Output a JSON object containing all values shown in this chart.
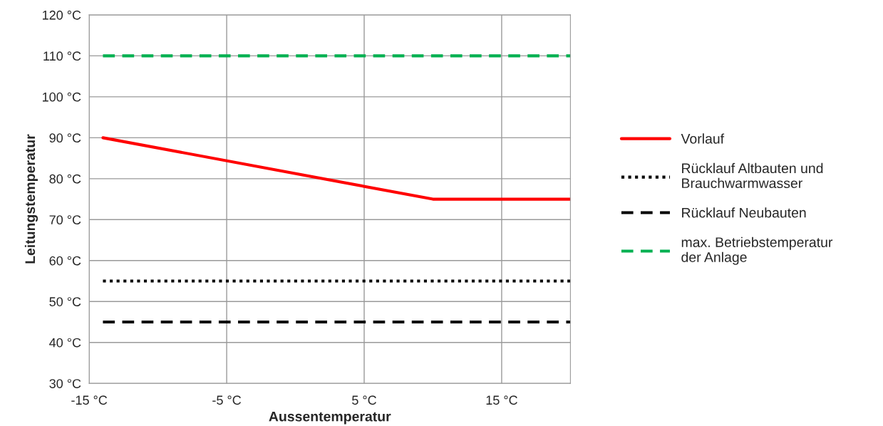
{
  "chart_data": {
    "type": "line",
    "xlabel": "Aussentemperatur",
    "ylabel": "Leitungstemperatur",
    "xlim": [
      -15,
      20
    ],
    "xticks": [
      {
        "value": -15,
        "label": "-15 °C"
      },
      {
        "value": -5,
        "label": "-5 °C"
      },
      {
        "value": 5,
        "label": "5 °C"
      },
      {
        "value": 15,
        "label": "15 °C"
      }
    ],
    "ylim": [
      30,
      120
    ],
    "yticks": [
      {
        "value": 30,
        "label": "30 °C"
      },
      {
        "value": 40,
        "label": "40 °C"
      },
      {
        "value": 50,
        "label": "50 °C"
      },
      {
        "value": 60,
        "label": "60 °C"
      },
      {
        "value": 70,
        "label": "70 °C"
      },
      {
        "value": 80,
        "label": "80 °C"
      },
      {
        "value": 90,
        "label": "90 °C"
      },
      {
        "value": 100,
        "label": "100 °C"
      },
      {
        "value": 110,
        "label": "110 °C"
      },
      {
        "value": 120,
        "label": "120 °C"
      }
    ],
    "grid": true,
    "legend": "right",
    "marker": "none",
    "series": [
      {
        "name": "Vorlauf",
        "color": "#ff0000",
        "line_style": "solid",
        "x": [
          -14,
          10,
          20
        ],
        "values": [
          90,
          75,
          75
        ]
      },
      {
        "name": "Rücklauf Altbauten und Brauchwarmwasser",
        "color": "#000000",
        "line_style": "dotted",
        "x": [
          -14,
          20
        ],
        "values": [
          55,
          55
        ]
      },
      {
        "name": "Rücklauf Neubauten",
        "color": "#000000",
        "line_style": "dashed",
        "x": [
          -14,
          20
        ],
        "values": [
          45,
          45
        ]
      },
      {
        "name": "max. Betriebstemperatur der Anlage",
        "color": "#00b050",
        "line_style": "dashed",
        "x": [
          -14,
          20
        ],
        "values": [
          110,
          110
        ]
      }
    ]
  }
}
